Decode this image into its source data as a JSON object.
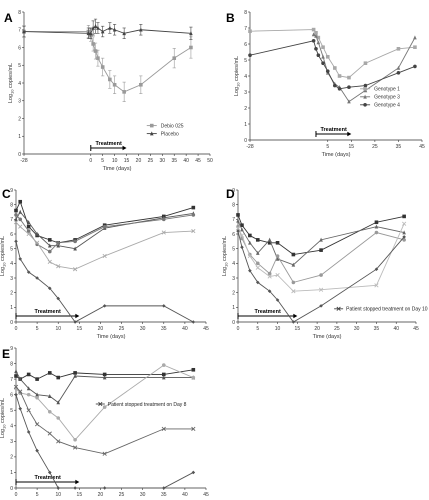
{
  "chart_data": [
    {
      "panel": "A",
      "type": "line",
      "xlabel": "Time (days)",
      "ylabel": "Log10 copies/mL",
      "xlim": [
        -28,
        50
      ],
      "ylim": [
        0,
        8
      ],
      "xticks": [
        -28,
        0,
        5,
        10,
        15,
        20,
        25,
        30,
        35,
        40,
        45,
        50
      ],
      "yticks": [
        0,
        1,
        2,
        3,
        4,
        5,
        6,
        7,
        8
      ],
      "treatment": {
        "label": "Treatment",
        "from": 0,
        "to": 15
      },
      "legend": [
        "Debio 025",
        "Placebo"
      ],
      "series": [
        {
          "name": "Debio 025",
          "color": "#9a9a9a",
          "x": [
            -28,
            -1,
            0,
            1,
            2,
            3,
            5,
            8,
            10,
            14,
            21,
            35,
            42
          ],
          "y": [
            6.9,
            6.9,
            6.7,
            6.2,
            5.8,
            5.4,
            4.9,
            4.2,
            3.9,
            3.5,
            3.9,
            5.4,
            6.0
          ],
          "err": [
            0.35,
            0.35,
            0.35,
            0.4,
            0.45,
            0.45,
            0.5,
            0.5,
            0.5,
            0.55,
            0.5,
            0.55,
            0.6
          ]
        },
        {
          "name": "Placebo",
          "color": "#444444",
          "x": [
            -28,
            -1,
            0,
            1,
            2,
            3,
            5,
            8,
            10,
            14,
            21,
            42
          ],
          "y": [
            6.9,
            6.8,
            6.8,
            7.1,
            7.2,
            7.1,
            6.9,
            7.1,
            7.0,
            6.8,
            7.0,
            6.8
          ],
          "err": [
            0.3,
            0.3,
            0.3,
            0.4,
            0.4,
            0.3,
            0.3,
            0.3,
            0.3,
            0.3,
            0.3,
            0.35
          ]
        }
      ]
    },
    {
      "panel": "B",
      "type": "line",
      "xlabel": "Time (days)",
      "ylabel": "Log10 copies/mL",
      "xlim": [
        -28,
        45
      ],
      "ylim": [
        0,
        8
      ],
      "xticks": [
        -28,
        5,
        15,
        25,
        35,
        45
      ],
      "yticks": [
        0,
        1,
        2,
        3,
        4,
        5,
        6,
        7,
        8
      ],
      "treatment": {
        "label": "Treatment",
        "from": 0,
        "to": 15
      },
      "legend": [
        "Genotype 1",
        "Genotype 3",
        "Genotype 4"
      ],
      "series": [
        {
          "name": "Genotype 1",
          "color": "#a8a8a8",
          "x": [
            -28,
            -1,
            0,
            1,
            3,
            5,
            8,
            10,
            14,
            21,
            35,
            42
          ],
          "y": [
            6.8,
            6.9,
            6.7,
            6.4,
            5.8,
            5.2,
            4.5,
            4.0,
            3.9,
            4.8,
            5.7,
            5.8
          ]
        },
        {
          "name": "Genotype 3",
          "color": "#777777",
          "x": [
            -1,
            0,
            1,
            3,
            5,
            8,
            10,
            14,
            21,
            35,
            42
          ],
          "y": [
            6.6,
            6.5,
            6.1,
            5.2,
            4.2,
            3.5,
            3.3,
            2.4,
            3.1,
            4.5,
            6.4
          ]
        },
        {
          "name": "Genotype 4",
          "color": "#444444",
          "x": [
            -28,
            -1,
            0,
            1,
            3,
            5,
            8,
            10,
            14,
            21,
            35,
            42
          ],
          "y": [
            5.3,
            6.2,
            5.7,
            5.3,
            4.8,
            4.3,
            3.4,
            3.2,
            3.3,
            3.4,
            4.2,
            4.6
          ]
        }
      ]
    },
    {
      "panel": "C",
      "type": "line",
      "xlabel": "Time (days)",
      "ylabel": "Log10 copies/mL",
      "xlim": [
        0,
        45
      ],
      "ylim": [
        0,
        9
      ],
      "xticks": [
        0,
        5,
        10,
        15,
        20,
        25,
        30,
        35,
        40,
        45
      ],
      "yticks": [
        0,
        1,
        2,
        3,
        4,
        5,
        6,
        7,
        8,
        9
      ],
      "treatment": {
        "label": "Treatment",
        "from": 0,
        "to": 15
      },
      "series": [
        {
          "color": "#333333",
          "x": [
            0,
            1,
            3,
            5,
            8,
            10,
            14,
            21,
            35,
            42
          ],
          "y": [
            7.6,
            8.2,
            6.5,
            5.9,
            5.6,
            5.4,
            5.6,
            6.6,
            7.2,
            7.8
          ]
        },
        {
          "color": "#555555",
          "x": [
            0,
            1,
            3,
            5,
            8,
            10,
            14,
            21,
            35,
            42
          ],
          "y": [
            7.0,
            7.5,
            6.8,
            6.0,
            5.2,
            5.2,
            5.0,
            6.4,
            7.1,
            7.4
          ]
        },
        {
          "color": "#777777",
          "x": [
            0,
            1,
            3,
            5,
            8,
            10,
            14,
            21,
            35,
            42
          ],
          "y": [
            7.3,
            7.0,
            6.2,
            5.3,
            4.8,
            5.4,
            5.5,
            6.5,
            7.0,
            7.3
          ]
        },
        {
          "color": "#aaaaaa",
          "x": [
            0,
            1,
            3,
            5,
            8,
            10,
            14,
            21,
            35,
            42
          ],
          "y": [
            6.8,
            6.5,
            6.0,
            5.4,
            4.1,
            3.8,
            3.6,
            4.5,
            6.1,
            6.2
          ]
        },
        {
          "color": "#555555",
          "x": [
            0,
            1,
            3,
            5,
            8,
            10,
            14,
            21,
            35,
            42
          ],
          "y": [
            5.5,
            4.3,
            3.4,
            3.0,
            2.3,
            1.6,
            0.0,
            1.1,
            1.1,
            0.0
          ]
        }
      ]
    },
    {
      "panel": "D",
      "type": "line",
      "xlabel": "Time (days)",
      "ylabel": "Log10 copies/mL",
      "xlim": [
        0,
        45
      ],
      "ylim": [
        0,
        9
      ],
      "xticks": [
        0,
        5,
        10,
        15,
        20,
        25,
        30,
        35,
        40,
        45
      ],
      "yticks": [
        0,
        1,
        2,
        3,
        4,
        5,
        6,
        7,
        8,
        9
      ],
      "treatment": {
        "label": "Treatment",
        "from": 0,
        "to": 15
      },
      "annotation": "Patient stopped treatment on Day 10",
      "series": [
        {
          "color": "#333333",
          "x": [
            0,
            1,
            3,
            5,
            8,
            10,
            14,
            21,
            35,
            42
          ],
          "y": [
            7.3,
            6.6,
            5.9,
            5.6,
            5.4,
            5.4,
            4.6,
            4.9,
            6.8,
            7.2
          ]
        },
        {
          "color": "#666666",
          "x": [
            0,
            1,
            3,
            5,
            8,
            10,
            14,
            21,
            35,
            42
          ],
          "y": [
            6.9,
            6.3,
            5.4,
            4.7,
            5.6,
            4.3,
            3.9,
            5.6,
            6.5,
            6.1
          ]
        },
        {
          "color": "#999999",
          "x": [
            0,
            1,
            3,
            5,
            8,
            10,
            14,
            21,
            35,
            42
          ],
          "y": [
            6.5,
            5.7,
            4.6,
            4.0,
            3.3,
            4.5,
            2.7,
            3.2,
            6.1,
            5.6
          ]
        },
        {
          "color": "#bbbbbb",
          "x": [
            0,
            1,
            3,
            5,
            8,
            10,
            14,
            21,
            35,
            42
          ],
          "y": [
            6.4,
            5.9,
            4.5,
            3.7,
            3.1,
            3.2,
            2.1,
            2.2,
            2.5,
            6.7
          ]
        },
        {
          "color": "#555555",
          "x": [
            0,
            1,
            3,
            5,
            8,
            10,
            14,
            21,
            35,
            42
          ],
          "y": [
            6.2,
            5.1,
            3.5,
            2.7,
            2.1,
            1.5,
            0.0,
            1.1,
            3.6,
            5.8
          ]
        }
      ]
    },
    {
      "panel": "E",
      "type": "line",
      "xlabel": "Time (days)",
      "ylabel": "Log10 copies/mL",
      "xlim": [
        0,
        45
      ],
      "ylim": [
        0,
        9
      ],
      "xticks": [
        0,
        5,
        10,
        15,
        20,
        25,
        30,
        35,
        40,
        45
      ],
      "yticks": [
        0,
        1,
        2,
        3,
        4,
        5,
        6,
        7,
        8,
        9
      ],
      "treatment": {
        "label": "Treatment",
        "from": 0,
        "to": 15
      },
      "annotation": "Patient stopped treatment on Day 8",
      "series": [
        {
          "color": "#333333",
          "x": [
            0,
            1,
            3,
            5,
            8,
            10,
            14,
            21,
            35,
            42
          ],
          "y": [
            7.2,
            7.0,
            7.3,
            7.0,
            7.4,
            7.1,
            7.4,
            7.3,
            7.3,
            7.6
          ]
        },
        {
          "color": "#555555",
          "x": [
            0,
            1,
            3,
            5,
            8,
            10,
            14,
            21,
            35,
            42
          ],
          "y": [
            7.5,
            7.0,
            6.4,
            6.0,
            5.9,
            5.5,
            7.2,
            7.1,
            7.1,
            7.1
          ]
        },
        {
          "color": "#aaaaaa",
          "x": [
            0,
            1,
            3,
            5,
            8,
            10,
            14,
            21,
            35,
            42
          ],
          "y": [
            6.4,
            6.1,
            6.0,
            5.8,
            4.9,
            4.5,
            3.1,
            5.2,
            7.9,
            7.1
          ]
        },
        {
          "color": "#666666",
          "x": [
            0,
            1,
            3,
            5,
            8,
            10,
            14,
            21,
            35,
            42
          ],
          "y": [
            6.5,
            6.2,
            5.0,
            4.1,
            3.5,
            3.0,
            2.6,
            2.2,
            3.8,
            3.8
          ]
        },
        {
          "color": "#555555",
          "x": [
            0,
            1,
            3,
            5,
            8,
            10,
            14,
            21,
            35,
            42
          ],
          "y": [
            6.0,
            5.1,
            3.6,
            2.4,
            1.0,
            0.0,
            0.0,
            0.0,
            0.0,
            1.0
          ]
        }
      ]
    }
  ]
}
